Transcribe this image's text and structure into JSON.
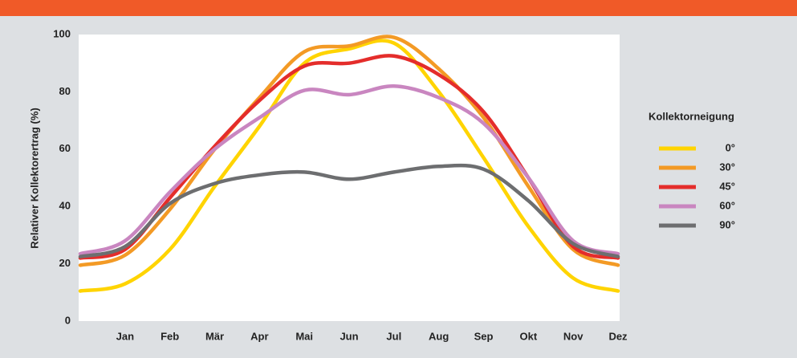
{
  "chart_data": {
    "type": "line",
    "y_label": "Relativer Kollektorertrag (%)",
    "legend_title": "Kollektorneigung",
    "categories": [
      null,
      "Jan",
      "Feb",
      "Mär",
      "Apr",
      "Mai",
      "Jun",
      "Jul",
      "Aug",
      "Sep",
      "Okt",
      "Nov",
      "Dez"
    ],
    "series": [
      {
        "name": "0°",
        "color": "#ffd400",
        "values": [
          10.5,
          13,
          25,
          47,
          68,
          90,
          95,
          97,
          80,
          57,
          33,
          15,
          10.5
        ]
      },
      {
        "name": "30°",
        "color": "#f39a25",
        "values": [
          19.5,
          23,
          39,
          60,
          78,
          94,
          96,
          99,
          88,
          71,
          47,
          25,
          19.5
        ]
      },
      {
        "name": "45°",
        "color": "#e42d2b",
        "values": [
          22,
          25,
          43,
          61,
          77,
          89,
          90,
          92.5,
          86,
          73,
          50,
          26,
          22
        ]
      },
      {
        "name": "60°",
        "color": "#c986c0",
        "values": [
          23.5,
          28,
          45,
          60,
          71,
          80.5,
          79,
          82,
          78,
          69,
          50,
          28,
          23.5
        ]
      },
      {
        "name": "90°",
        "color": "#6d6e70",
        "values": [
          22.5,
          26,
          41,
          48,
          51,
          52,
          49.5,
          52,
          54,
          53,
          42,
          27,
          22.5
        ]
      }
    ],
    "ylim": [
      0,
      100
    ],
    "yticks": [
      0,
      20,
      40,
      60,
      80,
      100
    ]
  }
}
